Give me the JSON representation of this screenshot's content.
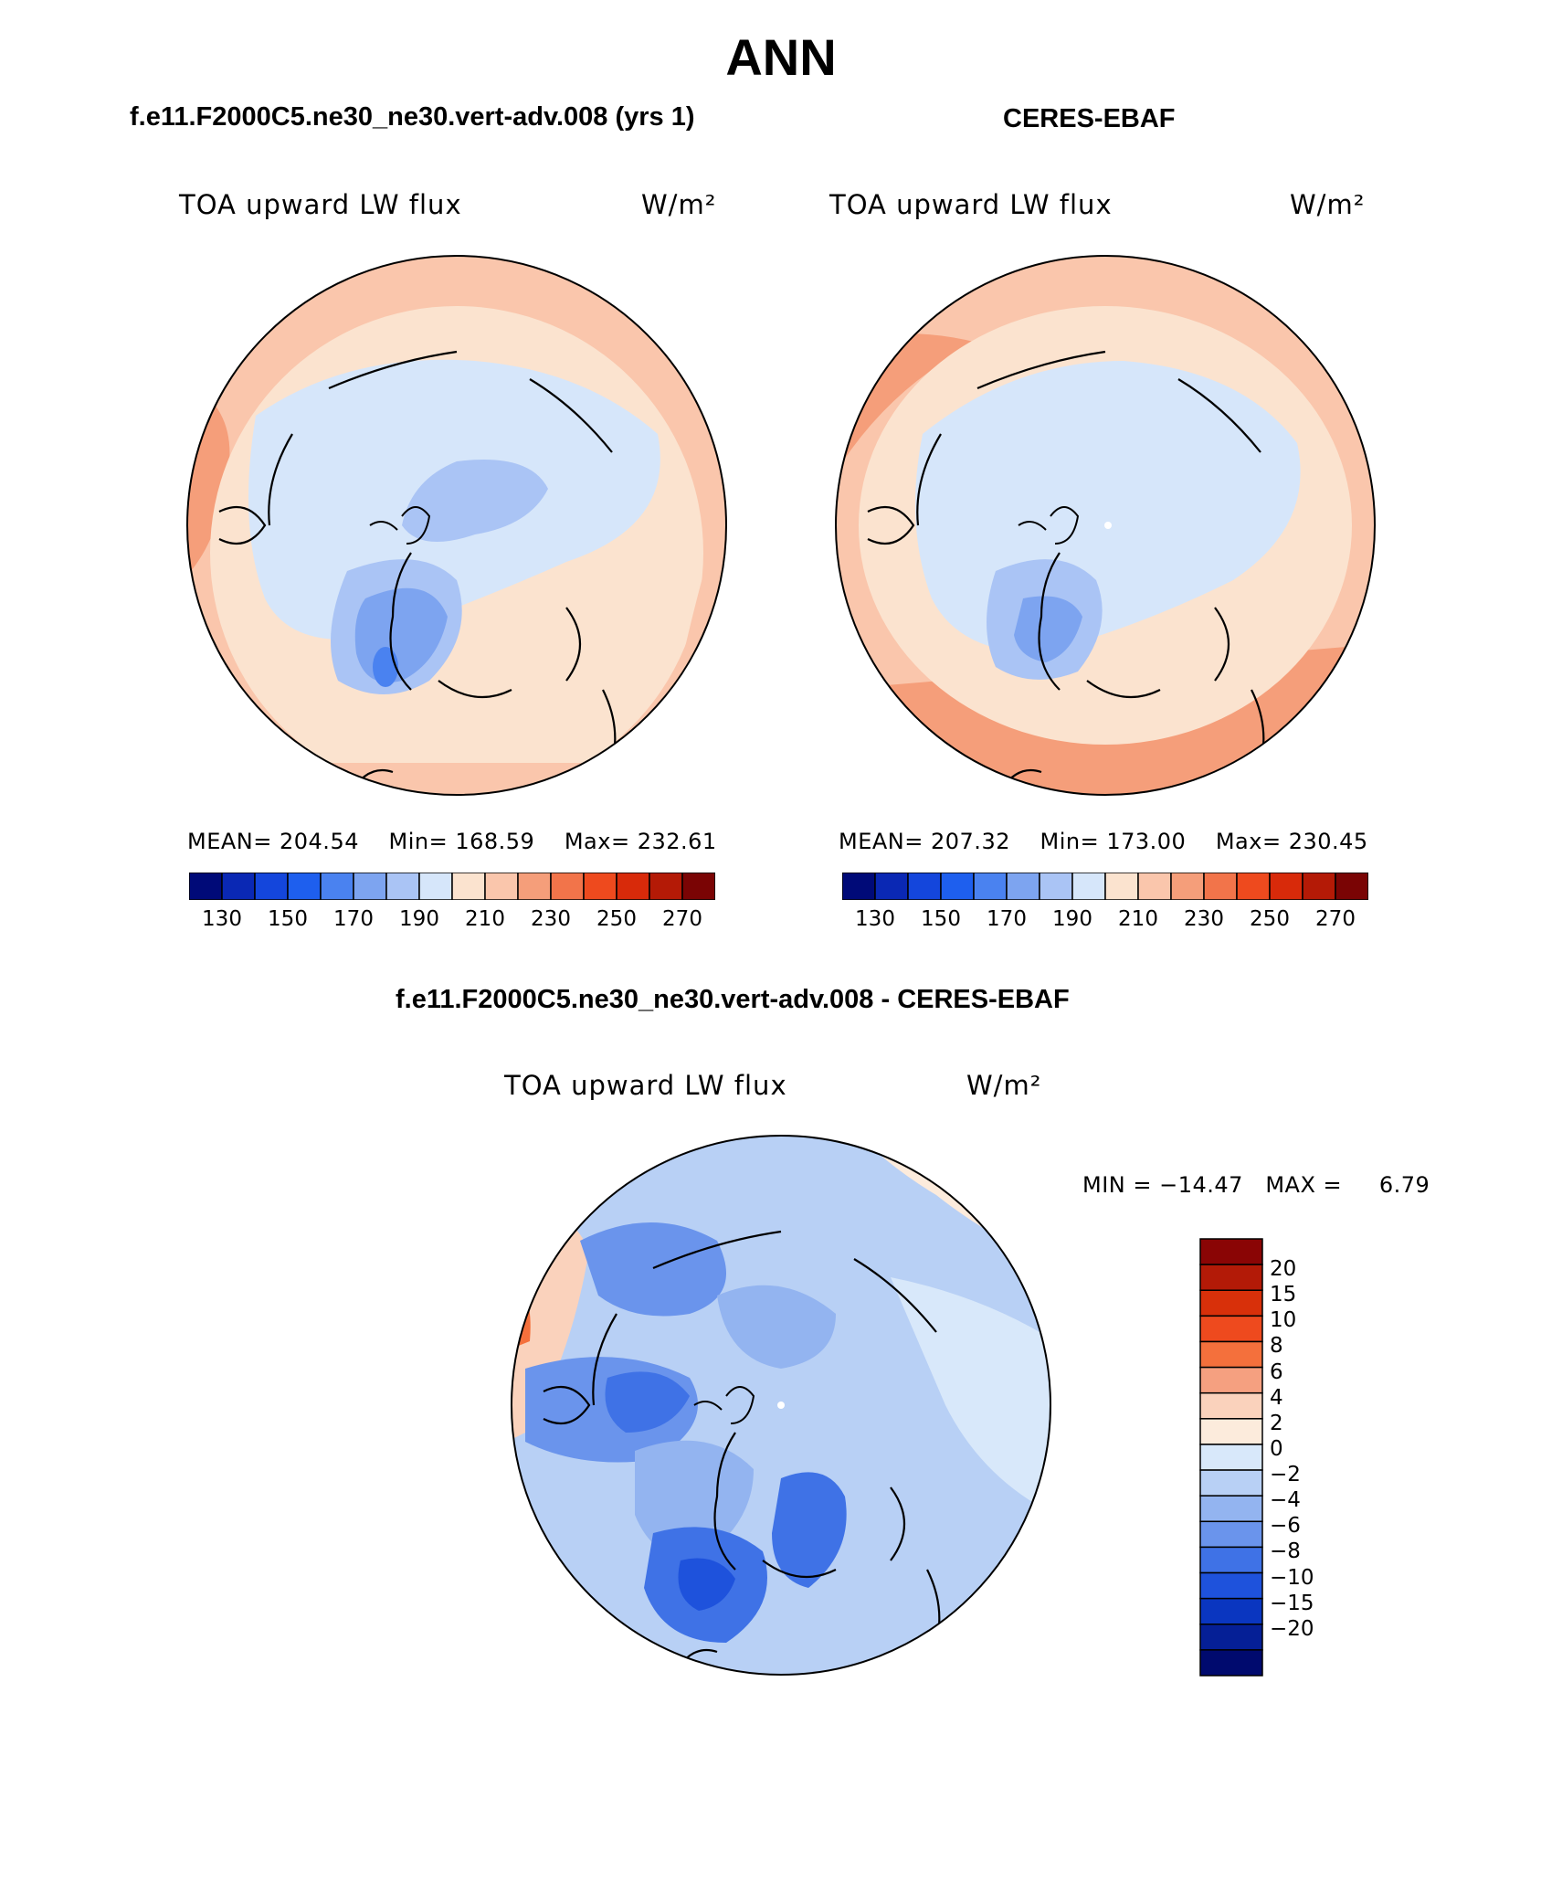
{
  "title": "ANN",
  "panels": [
    {
      "id": "model",
      "heading": "f.e11.F2000C5.ne30_ne30.vert-adv.008 (yrs 1)",
      "variable": "TOA upward LW flux",
      "units": "W/m²",
      "stats": {
        "mean_label": "MEAN=",
        "mean": "204.54",
        "min_label": "Min=",
        "min": "168.59",
        "max_label": "Max=",
        "max": "232.61"
      }
    },
    {
      "id": "obs",
      "heading": "CERES-EBAF",
      "variable": "TOA upward LW flux",
      "units": "W/m²",
      "stats": {
        "mean_label": "MEAN=",
        "mean": "207.32",
        "min_label": "Min=",
        "min": "173.00",
        "max_label": "Max=",
        "max": "230.45"
      }
    }
  ],
  "abs_colorbar": {
    "colors": [
      "#000a78",
      "#0a28b4",
      "#1446dc",
      "#1e5fee",
      "#4a82f0",
      "#7da4f0",
      "#aac4f5",
      "#d6e6fa",
      "#fbe3cf",
      "#fac6ac",
      "#f59e7a",
      "#f2744a",
      "#ee4a1e",
      "#d82a0a",
      "#b41a06",
      "#7a0404"
    ],
    "tick_labels": [
      "130",
      "150",
      "170",
      "190",
      "210",
      "230",
      "250",
      "270"
    ]
  },
  "diff_panel": {
    "heading": "f.e11.F2000C5.ne30_ne30.vert-adv.008 - CERES-EBAF",
    "variable": "TOA upward LW flux",
    "units": "W/m²",
    "min_label": "MIN =",
    "min": "−14.47",
    "max_label": "MAX =",
    "max": "6.79"
  },
  "diff_colorbar": {
    "colors_top_to_bottom": [
      "#8a0505",
      "#b31a07",
      "#d8300a",
      "#ee4a1e",
      "#f4703c",
      "#f5a080",
      "#fad2bc",
      "#fcebdc",
      "#d8e8fa",
      "#b8d0f5",
      "#93b4f0",
      "#6a94ec",
      "#3f72e6",
      "#1e52dc",
      "#0a36c0",
      "#051f96",
      "#000a6e"
    ],
    "tick_labels": [
      "20",
      "15",
      "10",
      "8",
      "6",
      "4",
      "2",
      "0",
      "−2",
      "−4",
      "−6",
      "−8",
      "−10",
      "−15",
      "−20"
    ]
  }
}
